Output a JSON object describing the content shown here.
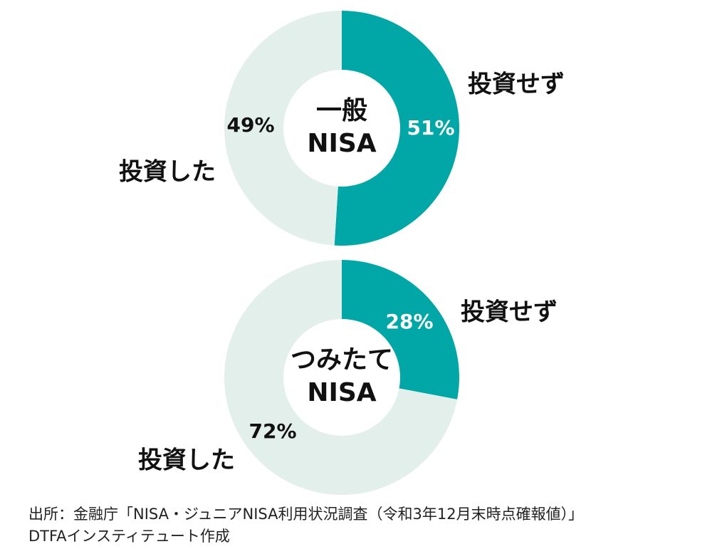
{
  "chart_data": [
    {
      "type": "pie",
      "donut": true,
      "center_label": [
        "一般",
        "NISA"
      ],
      "categories": [
        "投資せず",
        "投資した"
      ],
      "values": [
        51,
        49
      ],
      "value_labels": [
        "51%",
        "49%"
      ],
      "colors": [
        "#00a7a6",
        "#e2efea"
      ]
    },
    {
      "type": "pie",
      "donut": true,
      "center_label": [
        "つみたて",
        "NISA"
      ],
      "categories": [
        "投資せず",
        "投資した"
      ],
      "values": [
        28,
        72
      ],
      "value_labels": [
        "28%",
        "72%"
      ],
      "colors": [
        "#00a7a6",
        "#e2efea"
      ]
    }
  ],
  "source": [
    "出所：金融庁「NISA・ジュニアNISA利用状況調査（令和3年12月末時点確報値）」",
    "DTFAインスティテュート作成"
  ]
}
